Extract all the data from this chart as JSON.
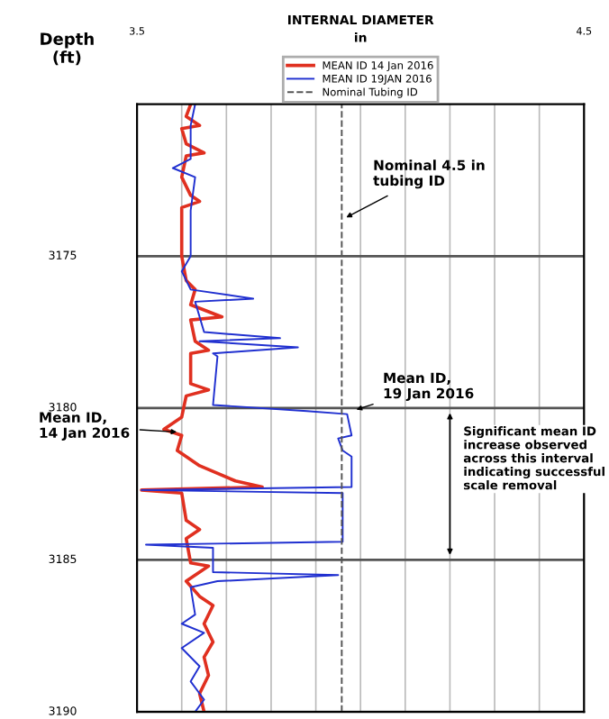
{
  "chart_data": {
    "type": "line",
    "orientation": "horizontal",
    "title": "INTERNAL DIAMETER",
    "xlabel": "in",
    "ylabel": "Depth\n(ft)",
    "xlim": [
      3.5,
      4.5
    ],
    "xticks": [
      {
        "value": 3.5,
        "label": "3.5"
      },
      {
        "value": 3.6,
        "label": null
      },
      {
        "value": 3.7,
        "label": null
      },
      {
        "value": 3.8,
        "label": null
      },
      {
        "value": 3.9,
        "label": null
      },
      {
        "value": 4.0,
        "label": null
      },
      {
        "value": 4.1,
        "label": null
      },
      {
        "value": 4.2,
        "label": null
      },
      {
        "value": 4.3,
        "label": null
      },
      {
        "value": 4.4,
        "label": null
      },
      {
        "value": 4.5,
        "label": "4.5"
      }
    ],
    "ylim": [
      3190,
      3170
    ],
    "yticks": [
      3175,
      3180,
      3185,
      3190
    ],
    "grid": true,
    "legend": "top",
    "marker": "none",
    "line_style": "solid",
    "series": [
      {
        "name": "MEAN ID 14 Jan 2016",
        "color": "#e03020",
        "x": [
          3170.0,
          3170.4,
          3170.7,
          3170.8,
          3171.3,
          3171.6,
          3171.7,
          3172.4,
          3173.0,
          3173.2,
          3173.4,
          3174.4,
          3175.0,
          3175.8,
          3176.1,
          3176.6,
          3177.0,
          3177.1,
          3177.8,
          3178.1,
          3178.2,
          3179.2,
          3179.4,
          3179.6,
          3180.3,
          3180.7,
          3180.9,
          3181.4,
          3181.9,
          3182.4,
          3182.6,
          3182.7,
          3182.8,
          3183.7,
          3184.0,
          3184.3,
          3185.1,
          3185.2,
          3185.7,
          3186.2,
          3186.5,
          3187.1,
          3187.7,
          3188.2,
          3188.8,
          3189.4,
          3190.0
        ],
        "values": [
          3.62,
          3.61,
          3.64,
          3.6,
          3.61,
          3.65,
          3.61,
          3.6,
          3.62,
          3.64,
          3.6,
          3.6,
          3.6,
          3.61,
          3.63,
          3.62,
          3.69,
          3.62,
          3.63,
          3.66,
          3.62,
          3.62,
          3.66,
          3.61,
          3.6,
          3.56,
          3.6,
          3.59,
          3.64,
          3.72,
          3.78,
          3.51,
          3.6,
          3.61,
          3.64,
          3.61,
          3.62,
          3.66,
          3.61,
          3.64,
          3.67,
          3.65,
          3.67,
          3.65,
          3.66,
          3.64,
          3.65
        ]
      },
      {
        "name": "MEAN ID 19JAN 2016",
        "color": "#2030d0",
        "x": [
          3170.0,
          3170.7,
          3171.8,
          3172.1,
          3172.4,
          3173.5,
          3175.0,
          3175.5,
          3176.1,
          3176.4,
          3176.5,
          3177.5,
          3177.7,
          3177.8,
          3178.0,
          3178.2,
          3178.3,
          3179.9,
          3180.1,
          3180.2,
          3180.9,
          3181.0,
          3181.4,
          3181.6,
          3182.6,
          3182.7,
          3182.8,
          3184.4,
          3184.5,
          3184.6,
          3185.4,
          3185.5,
          3185.7,
          3185.9,
          3186.8,
          3187.1,
          3187.4,
          3187.9,
          3188.5,
          3189.0,
          3189.6,
          3190.0
        ],
        "values": [
          3.63,
          3.62,
          3.62,
          3.58,
          3.63,
          3.62,
          3.62,
          3.6,
          3.62,
          3.76,
          3.63,
          3.65,
          3.82,
          3.64,
          3.86,
          3.67,
          3.68,
          3.67,
          3.88,
          3.97,
          3.98,
          3.95,
          3.96,
          3.98,
          3.98,
          3.51,
          3.96,
          3.96,
          3.52,
          3.67,
          3.67,
          3.95,
          3.68,
          3.62,
          3.63,
          3.6,
          3.65,
          3.6,
          3.64,
          3.62,
          3.65,
          3.63
        ]
      }
    ],
    "ref_lines": [
      {
        "axis": "x",
        "value": 3.958,
        "label": "Nominal Tubing ID",
        "color": "#555555",
        "line_style": "dashed"
      }
    ],
    "annotations": [
      "Significant mean ID increase observed across this interval indicating successful scale removal",
      {
        "text": "Nominal 4.5 in\ntubing ID",
        "x": 3.958,
        "y": 3173.8
      },
      {
        "text": "Mean ID,\n19 Jan 2016",
        "x": 3.98,
        "y": 3180.1
      },
      {
        "text": "Mean ID,\n14 Jan 2016",
        "x": 3.6,
        "y": 3180.8
      }
    ]
  }
}
